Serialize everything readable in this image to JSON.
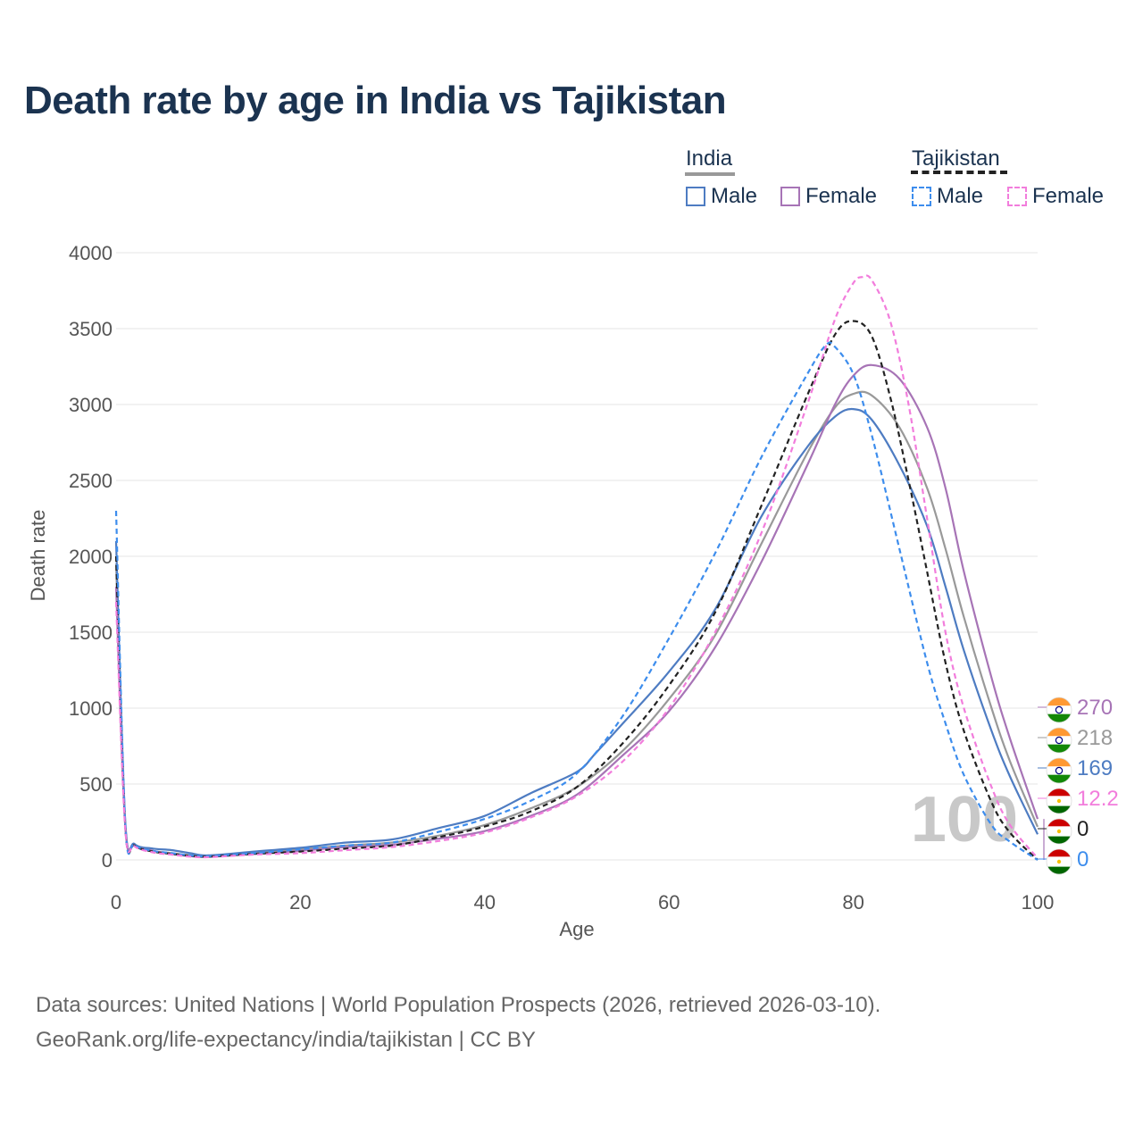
{
  "title": "Death rate by age in India vs Tajikistan",
  "legend": {
    "groups": [
      {
        "label": "India",
        "line_style": "solid",
        "line_color": "#999999",
        "items": [
          {
            "label": "Male",
            "color": "#4e7cc2",
            "dashed": false
          },
          {
            "label": "Female",
            "color": "#a774b6",
            "dashed": false
          }
        ]
      },
      {
        "label": "Tajikistan",
        "line_style": "dashed",
        "line_color": "#222222",
        "items": [
          {
            "label": "Male",
            "color": "#3d8ded",
            "dashed": true
          },
          {
            "label": "Female",
            "color": "#f27ddc",
            "dashed": true
          }
        ]
      }
    ]
  },
  "sources": {
    "line1": "Data sources: United Nations | World Population Prospects (2026, retrieved 2026-03-10).",
    "line2": "GeoRank.org/life-expectancy/india/tajikistan | CC BY"
  },
  "chart_data": {
    "type": "line",
    "title": "Death rate by age in India vs Tajikistan",
    "xlabel": "Age",
    "ylabel": "Death rate",
    "xlim": [
      0,
      100
    ],
    "ylim": [
      0,
      4000
    ],
    "xticks": [
      0,
      20,
      40,
      60,
      80,
      100
    ],
    "yticks": [
      0,
      500,
      1000,
      1500,
      2000,
      2500,
      3000,
      3500,
      4000
    ],
    "grid": true,
    "watermark": "100",
    "series": [
      {
        "name": "India Total",
        "country": "India",
        "color": "#999999",
        "dashed": false,
        "end_label": "218",
        "points": [
          [
            0,
            1950
          ],
          [
            1,
            230
          ],
          [
            2,
            100
          ],
          [
            4,
            60
          ],
          [
            6,
            45
          ],
          [
            8,
            30
          ],
          [
            10,
            25
          ],
          [
            15,
            45
          ],
          [
            20,
            70
          ],
          [
            25,
            95
          ],
          [
            30,
            115
          ],
          [
            35,
            160
          ],
          [
            40,
            230
          ],
          [
            45,
            340
          ],
          [
            50,
            480
          ],
          [
            55,
            720
          ],
          [
            60,
            1060
          ],
          [
            65,
            1480
          ],
          [
            70,
            2080
          ],
          [
            75,
            2680
          ],
          [
            78,
            2980
          ],
          [
            80,
            3070
          ],
          [
            82,
            3060
          ],
          [
            85,
            2850
          ],
          [
            88,
            2450
          ],
          [
            90,
            2050
          ],
          [
            92,
            1600
          ],
          [
            95,
            1000
          ],
          [
            97,
            650
          ],
          [
            100,
            218
          ]
        ]
      },
      {
        "name": "India Male",
        "country": "India",
        "color": "#4e7cc2",
        "dashed": false,
        "end_label": "169",
        "points": [
          [
            0,
            2100
          ],
          [
            1,
            250
          ],
          [
            2,
            105
          ],
          [
            4,
            75
          ],
          [
            6,
            65
          ],
          [
            8,
            45
          ],
          [
            10,
            30
          ],
          [
            15,
            55
          ],
          [
            20,
            80
          ],
          [
            25,
            115
          ],
          [
            30,
            135
          ],
          [
            35,
            210
          ],
          [
            40,
            290
          ],
          [
            45,
            440
          ],
          [
            50,
            580
          ],
          [
            52,
            700
          ],
          [
            55,
            900
          ],
          [
            60,
            1240
          ],
          [
            65,
            1650
          ],
          [
            70,
            2260
          ],
          [
            75,
            2720
          ],
          [
            78,
            2920
          ],
          [
            80,
            2970
          ],
          [
            82,
            2900
          ],
          [
            85,
            2600
          ],
          [
            88,
            2200
          ],
          [
            90,
            1800
          ],
          [
            92,
            1380
          ],
          [
            95,
            850
          ],
          [
            97,
            550
          ],
          [
            100,
            169
          ]
        ]
      },
      {
        "name": "India Female",
        "country": "India",
        "color": "#a774b6",
        "dashed": false,
        "end_label": "270",
        "points": [
          [
            0,
            1800
          ],
          [
            1,
            220
          ],
          [
            2,
            95
          ],
          [
            4,
            60
          ],
          [
            6,
            40
          ],
          [
            8,
            25
          ],
          [
            10,
            20
          ],
          [
            15,
            40
          ],
          [
            20,
            60
          ],
          [
            25,
            85
          ],
          [
            30,
            100
          ],
          [
            35,
            140
          ],
          [
            40,
            190
          ],
          [
            45,
            290
          ],
          [
            50,
            430
          ],
          [
            55,
            690
          ],
          [
            60,
            980
          ],
          [
            65,
            1400
          ],
          [
            70,
            1960
          ],
          [
            75,
            2600
          ],
          [
            78,
            3000
          ],
          [
            80,
            3190
          ],
          [
            82,
            3260
          ],
          [
            85,
            3170
          ],
          [
            88,
            2850
          ],
          [
            90,
            2450
          ],
          [
            92,
            1900
          ],
          [
            95,
            1200
          ],
          [
            97,
            800
          ],
          [
            100,
            270
          ]
        ]
      },
      {
        "name": "Tajikistan Total",
        "country": "Tajikistan",
        "color": "#222222",
        "dashed": true,
        "end_label": "0",
        "points": [
          [
            0,
            2000
          ],
          [
            1,
            220
          ],
          [
            2,
            95
          ],
          [
            4,
            55
          ],
          [
            6,
            40
          ],
          [
            8,
            28
          ],
          [
            10,
            22
          ],
          [
            15,
            40
          ],
          [
            20,
            55
          ],
          [
            25,
            75
          ],
          [
            30,
            95
          ],
          [
            35,
            150
          ],
          [
            40,
            220
          ],
          [
            45,
            320
          ],
          [
            50,
            480
          ],
          [
            55,
            770
          ],
          [
            60,
            1150
          ],
          [
            65,
            1630
          ],
          [
            70,
            2330
          ],
          [
            75,
            3060
          ],
          [
            78,
            3460
          ],
          [
            80,
            3550
          ],
          [
            82,
            3450
          ],
          [
            84,
            3050
          ],
          [
            86,
            2500
          ],
          [
            88,
            1900
          ],
          [
            90,
            1300
          ],
          [
            92,
            850
          ],
          [
            95,
            380
          ],
          [
            97,
            180
          ],
          [
            100,
            0
          ]
        ]
      },
      {
        "name": "Tajikistan Male",
        "country": "Tajikistan",
        "color": "#3d8ded",
        "dashed": true,
        "end_label": "0",
        "points": [
          [
            0,
            2300
          ],
          [
            1,
            240
          ],
          [
            2,
            100
          ],
          [
            4,
            60
          ],
          [
            6,
            45
          ],
          [
            8,
            30
          ],
          [
            10,
            25
          ],
          [
            15,
            45
          ],
          [
            20,
            70
          ],
          [
            25,
            95
          ],
          [
            30,
            115
          ],
          [
            35,
            185
          ],
          [
            40,
            270
          ],
          [
            45,
            390
          ],
          [
            50,
            570
          ],
          [
            55,
            950
          ],
          [
            60,
            1460
          ],
          [
            65,
            2020
          ],
          [
            70,
            2650
          ],
          [
            75,
            3200
          ],
          [
            77,
            3390
          ],
          [
            78,
            3380
          ],
          [
            80,
            3200
          ],
          [
            82,
            2800
          ],
          [
            85,
            2050
          ],
          [
            88,
            1300
          ],
          [
            90,
            900
          ],
          [
            92,
            560
          ],
          [
            95,
            230
          ],
          [
            97,
            120
          ],
          [
            100,
            0
          ]
        ]
      },
      {
        "name": "Tajikistan Female",
        "country": "Tajikistan",
        "color": "#f27ddc",
        "dashed": true,
        "end_label": "12.2",
        "points": [
          [
            0,
            1700
          ],
          [
            1,
            200
          ],
          [
            2,
            90
          ],
          [
            4,
            50
          ],
          [
            6,
            35
          ],
          [
            8,
            22
          ],
          [
            10,
            18
          ],
          [
            15,
            35
          ],
          [
            20,
            45
          ],
          [
            25,
            65
          ],
          [
            30,
            85
          ],
          [
            35,
            125
          ],
          [
            40,
            180
          ],
          [
            45,
            280
          ],
          [
            50,
            420
          ],
          [
            55,
            650
          ],
          [
            60,
            1000
          ],
          [
            65,
            1500
          ],
          [
            70,
            2150
          ],
          [
            75,
            3000
          ],
          [
            78,
            3560
          ],
          [
            80,
            3800
          ],
          [
            81,
            3840
          ],
          [
            82,
            3820
          ],
          [
            84,
            3550
          ],
          [
            86,
            3000
          ],
          [
            88,
            2250
          ],
          [
            90,
            1500
          ],
          [
            92,
            1000
          ],
          [
            95,
            480
          ],
          [
            97,
            230
          ],
          [
            100,
            12.2
          ]
        ]
      }
    ],
    "end_labels_order": [
      {
        "value": "270",
        "color": "#a774b6",
        "flag": "india"
      },
      {
        "value": "218",
        "color": "#999999",
        "flag": "india"
      },
      {
        "value": "169",
        "color": "#4e7cc2",
        "flag": "india"
      },
      {
        "value": "12.2",
        "color": "#f27ddc",
        "flag": "tajikistan"
      },
      {
        "value": "0",
        "color": "#222222",
        "flag": "tajikistan"
      },
      {
        "value": "0",
        "color": "#3d8ded",
        "flag": "tajikistan"
      }
    ]
  }
}
